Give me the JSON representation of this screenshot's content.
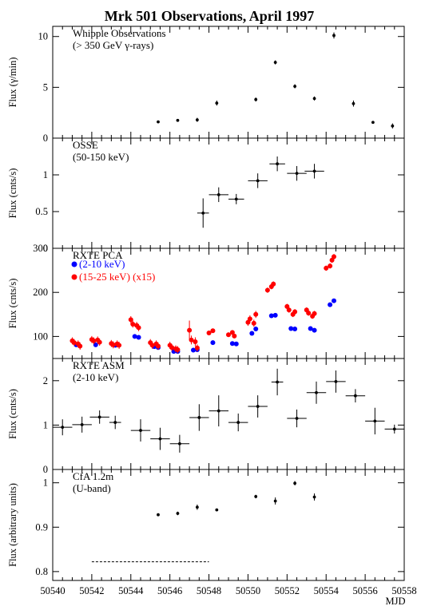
{
  "chart_data": {
    "type": "scatter",
    "title": "Mrk 501 Observations, April 1997",
    "xlabel": "MJD",
    "xlim": [
      50540,
      50558
    ],
    "xticks": [
      50540,
      50542,
      50544,
      50546,
      50548,
      50550,
      50552,
      50554,
      50556,
      50558
    ],
    "panels": [
      {
        "id": "whipple",
        "label_line1": "Whipple Observations",
        "label_line2": "(> 350 GeV γ-rays)",
        "ylabel": "Flux (γ/min)",
        "ylim": [
          0,
          11
        ],
        "yticks": [
          0,
          5,
          10
        ],
        "series": [
          {
            "color": "#000000",
            "points": [
              {
                "x": 50545.4,
                "y": 1.6,
                "yerr": 0.05,
                "xerr": 0
              },
              {
                "x": 50546.4,
                "y": 1.75,
                "yerr": 0.05,
                "xerr": 0
              },
              {
                "x": 50547.4,
                "y": 1.8,
                "yerr": 0.2,
                "xerr": 0
              },
              {
                "x": 50548.4,
                "y": 3.45,
                "yerr": 0.25,
                "xerr": 0
              },
              {
                "x": 50550.4,
                "y": 3.8,
                "yerr": 0.2,
                "xerr": 0
              },
              {
                "x": 50551.4,
                "y": 7.45,
                "yerr": 0.2,
                "xerr": 0
              },
              {
                "x": 50552.4,
                "y": 5.1,
                "yerr": 0.2,
                "xerr": 0
              },
              {
                "x": 50553.4,
                "y": 3.9,
                "yerr": 0.2,
                "xerr": 0
              },
              {
                "x": 50554.4,
                "y": 10.1,
                "yerr": 0.3,
                "xerr": 0
              },
              {
                "x": 50555.4,
                "y": 3.4,
                "yerr": 0.3,
                "xerr": 0
              },
              {
                "x": 50556.4,
                "y": 1.55,
                "yerr": 0.1,
                "xerr": 0
              },
              {
                "x": 50557.4,
                "y": 1.2,
                "yerr": 0.25,
                "xerr": 0
              }
            ]
          }
        ]
      },
      {
        "id": "osse",
        "label_line1": "OSSE",
        "label_line2": "(50-150 keV)",
        "ylabel": "Flux (cnts/s)",
        "ylim": [
          0,
          1.5
        ],
        "yticks": [
          0,
          0.5,
          1
        ],
        "series": [
          {
            "color": "#000000",
            "points": [
              {
                "x": 50547.7,
                "y": 0.48,
                "yerr": 0.2,
                "xerr": 0.3
              },
              {
                "x": 50548.5,
                "y": 0.73,
                "yerr": 0.1,
                "xerr": 0.5
              },
              {
                "x": 50549.4,
                "y": 0.67,
                "yerr": 0.07,
                "xerr": 0.4
              },
              {
                "x": 50550.5,
                "y": 0.92,
                "yerr": 0.1,
                "xerr": 0.5
              },
              {
                "x": 50551.5,
                "y": 1.15,
                "yerr": 0.1,
                "xerr": 0.4
              },
              {
                "x": 50552.5,
                "y": 1.02,
                "yerr": 0.1,
                "xerr": 0.5
              },
              {
                "x": 50553.4,
                "y": 1.05,
                "yerr": 0.1,
                "xerr": 0.5
              }
            ]
          }
        ]
      },
      {
        "id": "rxte_pca",
        "label_line1": "RXTE PCA",
        "ylabel": "Flux (cnts/s)",
        "ylim": [
          50,
          300
        ],
        "yticks": [
          100,
          200,
          300
        ],
        "series": [
          {
            "name": "(2-10 keV)",
            "color": "#0000ff",
            "points": [
              {
                "x": 50541.2,
                "y": 81
              },
              {
                "x": 50542.2,
                "y": 81
              },
              {
                "x": 50543.2,
                "y": 80
              },
              {
                "x": 50544.2,
                "y": 100
              },
              {
                "x": 50544.4,
                "y": 98
              },
              {
                "x": 50545.2,
                "y": 77
              },
              {
                "x": 50545.4,
                "y": 75
              },
              {
                "x": 50546.2,
                "y": 66
              },
              {
                "x": 50546.4,
                "y": 66
              },
              {
                "x": 50547.2,
                "y": 69
              },
              {
                "x": 50547.4,
                "y": 70
              },
              {
                "x": 50548.2,
                "y": 86
              },
              {
                "x": 50549.2,
                "y": 84
              },
              {
                "x": 50549.4,
                "y": 83
              },
              {
                "x": 50550.2,
                "y": 107
              },
              {
                "x": 50550.4,
                "y": 117
              },
              {
                "x": 50551.2,
                "y": 147
              },
              {
                "x": 50551.4,
                "y": 148
              },
              {
                "x": 50552.2,
                "y": 118
              },
              {
                "x": 50552.4,
                "y": 117
              },
              {
                "x": 50553.2,
                "y": 118
              },
              {
                "x": 50553.4,
                "y": 114
              },
              {
                "x": 50554.2,
                "y": 172
              },
              {
                "x": 50554.4,
                "y": 181
              }
            ]
          },
          {
            "name": "(15-25 keV) (x15)",
            "color": "#ff0000",
            "points": [
              {
                "x": 50541.0,
                "y": 90,
                "yerr": 8
              },
              {
                "x": 50541.1,
                "y": 86,
                "yerr": 8
              },
              {
                "x": 50541.3,
                "y": 83,
                "yerr": 8
              },
              {
                "x": 50541.4,
                "y": 78,
                "yerr": 8
              },
              {
                "x": 50542.0,
                "y": 93,
                "yerr": 8
              },
              {
                "x": 50542.1,
                "y": 90,
                "yerr": 8
              },
              {
                "x": 50542.3,
                "y": 92,
                "yerr": 8
              },
              {
                "x": 50542.4,
                "y": 87,
                "yerr": 8
              },
              {
                "x": 50543.0,
                "y": 84,
                "yerr": 8
              },
              {
                "x": 50543.1,
                "y": 81,
                "yerr": 8
              },
              {
                "x": 50543.3,
                "y": 83,
                "yerr": 8
              },
              {
                "x": 50543.4,
                "y": 80,
                "yerr": 8
              },
              {
                "x": 50544.0,
                "y": 138,
                "yerr": 8
              },
              {
                "x": 50544.1,
                "y": 128,
                "yerr": 8
              },
              {
                "x": 50544.3,
                "y": 125,
                "yerr": 8
              },
              {
                "x": 50544.4,
                "y": 120,
                "yerr": 8
              },
              {
                "x": 50545.0,
                "y": 86,
                "yerr": 8
              },
              {
                "x": 50545.1,
                "y": 80,
                "yerr": 8
              },
              {
                "x": 50545.3,
                "y": 83,
                "yerr": 8
              },
              {
                "x": 50545.4,
                "y": 78,
                "yerr": 8
              },
              {
                "x": 50546.0,
                "y": 80,
                "yerr": 8
              },
              {
                "x": 50546.1,
                "y": 75,
                "yerr": 8
              },
              {
                "x": 50546.3,
                "y": 72,
                "yerr": 8
              },
              {
                "x": 50546.4,
                "y": 70,
                "yerr": 8
              },
              {
                "x": 50547.0,
                "y": 114,
                "yerr": 22
              },
              {
                "x": 50547.1,
                "y": 92,
                "yerr": 10
              },
              {
                "x": 50547.3,
                "y": 88,
                "yerr": 10
              },
              {
                "x": 50547.4,
                "y": 74,
                "yerr": 8
              },
              {
                "x": 50548.0,
                "y": 108,
                "yerr": 5
              },
              {
                "x": 50548.2,
                "y": 113,
                "yerr": 5
              },
              {
                "x": 50549.0,
                "y": 104,
                "yerr": 5
              },
              {
                "x": 50549.2,
                "y": 109,
                "yerr": 5
              },
              {
                "x": 50549.3,
                "y": 101,
                "yerr": 5
              },
              {
                "x": 50550.0,
                "y": 132,
                "yerr": 8
              },
              {
                "x": 50550.1,
                "y": 140,
                "yerr": 8
              },
              {
                "x": 50550.3,
                "y": 130,
                "yerr": 8
              },
              {
                "x": 50550.4,
                "y": 150,
                "yerr": 8
              },
              {
                "x": 50551.0,
                "y": 205,
                "yerr": 6
              },
              {
                "x": 50551.2,
                "y": 213,
                "yerr": 6
              },
              {
                "x": 50551.3,
                "y": 219,
                "yerr": 6
              },
              {
                "x": 50552.0,
                "y": 168,
                "yerr": 6
              },
              {
                "x": 50552.1,
                "y": 160,
                "yerr": 6
              },
              {
                "x": 50552.3,
                "y": 150,
                "yerr": 6
              },
              {
                "x": 50552.4,
                "y": 156,
                "yerr": 6
              },
              {
                "x": 50553.0,
                "y": 160,
                "yerr": 6
              },
              {
                "x": 50553.1,
                "y": 153,
                "yerr": 6
              },
              {
                "x": 50553.3,
                "y": 146,
                "yerr": 6
              },
              {
                "x": 50553.4,
                "y": 152,
                "yerr": 6
              },
              {
                "x": 50554.0,
                "y": 255,
                "yerr": 6
              },
              {
                "x": 50554.2,
                "y": 260,
                "yerr": 6
              },
              {
                "x": 50554.3,
                "y": 273,
                "yerr": 6
              },
              {
                "x": 50554.4,
                "y": 281,
                "yerr": 6
              }
            ]
          }
        ]
      },
      {
        "id": "rxte_asm",
        "label_line1": "RXTE ASM",
        "label_line2": "(2-10 keV)",
        "ylabel": "Flux (cnts/s)",
        "ylim": [
          0,
          2.5
        ],
        "yticks": [
          0,
          1,
          2
        ],
        "series": [
          {
            "color": "#000000",
            "points": [
              {
                "x": 50540.5,
                "y": 0.95,
                "yerr": 0.18,
                "xerr": 0.5
              },
              {
                "x": 50541.5,
                "y": 1.01,
                "yerr": 0.18,
                "xerr": 0.5
              },
              {
                "x": 50542.4,
                "y": 1.18,
                "yerr": 0.15,
                "xerr": 0.5
              },
              {
                "x": 50543.2,
                "y": 1.06,
                "yerr": 0.15,
                "xerr": 0.3
              },
              {
                "x": 50544.5,
                "y": 0.88,
                "yerr": 0.25,
                "xerr": 0.5
              },
              {
                "x": 50545.5,
                "y": 0.69,
                "yerr": 0.25,
                "xerr": 0.5
              },
              {
                "x": 50546.5,
                "y": 0.58,
                "yerr": 0.2,
                "xerr": 0.5
              },
              {
                "x": 50547.5,
                "y": 1.17,
                "yerr": 0.3,
                "xerr": 0.5
              },
              {
                "x": 50548.5,
                "y": 1.32,
                "yerr": 0.35,
                "xerr": 0.5
              },
              {
                "x": 50549.5,
                "y": 1.06,
                "yerr": 0.2,
                "xerr": 0.5
              },
              {
                "x": 50550.5,
                "y": 1.42,
                "yerr": 0.25,
                "xerr": 0.5
              },
              {
                "x": 50551.5,
                "y": 1.97,
                "yerr": 0.3,
                "xerr": 0.3
              },
              {
                "x": 50552.5,
                "y": 1.15,
                "yerr": 0.2,
                "xerr": 0.5
              },
              {
                "x": 50553.5,
                "y": 1.73,
                "yerr": 0.25,
                "xerr": 0.5
              },
              {
                "x": 50554.5,
                "y": 1.98,
                "yerr": 0.25,
                "xerr": 0.5
              },
              {
                "x": 50555.5,
                "y": 1.66,
                "yerr": 0.15,
                "xerr": 0.5
              },
              {
                "x": 50556.5,
                "y": 1.09,
                "yerr": 0.3,
                "xerr": 0.5
              },
              {
                "x": 50557.5,
                "y": 0.91,
                "yerr": 0.1,
                "xerr": 0.5
              }
            ]
          }
        ]
      },
      {
        "id": "cfa",
        "label_line1": "CfA 1.2m",
        "label_line2": "(U-band)",
        "ylabel": "Flux (arbitrary units)",
        "ylim": [
          0.78,
          1.03
        ],
        "yticks": [
          0.8,
          0.9,
          1
        ],
        "series": [
          {
            "color": "#000000",
            "points": [
              {
                "x": 50545.4,
                "y": 0.928,
                "yerr": 0.002,
                "xerr": 0
              },
              {
                "x": 50546.4,
                "y": 0.931,
                "yerr": 0.004,
                "xerr": 0
              },
              {
                "x": 50547.4,
                "y": 0.945,
                "yerr": 0.006,
                "xerr": 0
              },
              {
                "x": 50548.4,
                "y": 0.939,
                "yerr": 0.003,
                "xerr": 0
              },
              {
                "x": 50550.4,
                "y": 0.969,
                "yerr": 0.004,
                "xerr": 0
              },
              {
                "x": 50551.4,
                "y": 0.959,
                "yerr": 0.008,
                "xerr": 0
              },
              {
                "x": 50552.4,
                "y": 0.999,
                "yerr": 0.005,
                "xerr": 0
              },
              {
                "x": 50553.4,
                "y": 0.968,
                "yerr": 0.008,
                "xerr": 0
              }
            ]
          }
        ],
        "dashed_line": {
          "x1": 50542.0,
          "x2": 50548.0,
          "y": 0.822
        }
      }
    ]
  }
}
